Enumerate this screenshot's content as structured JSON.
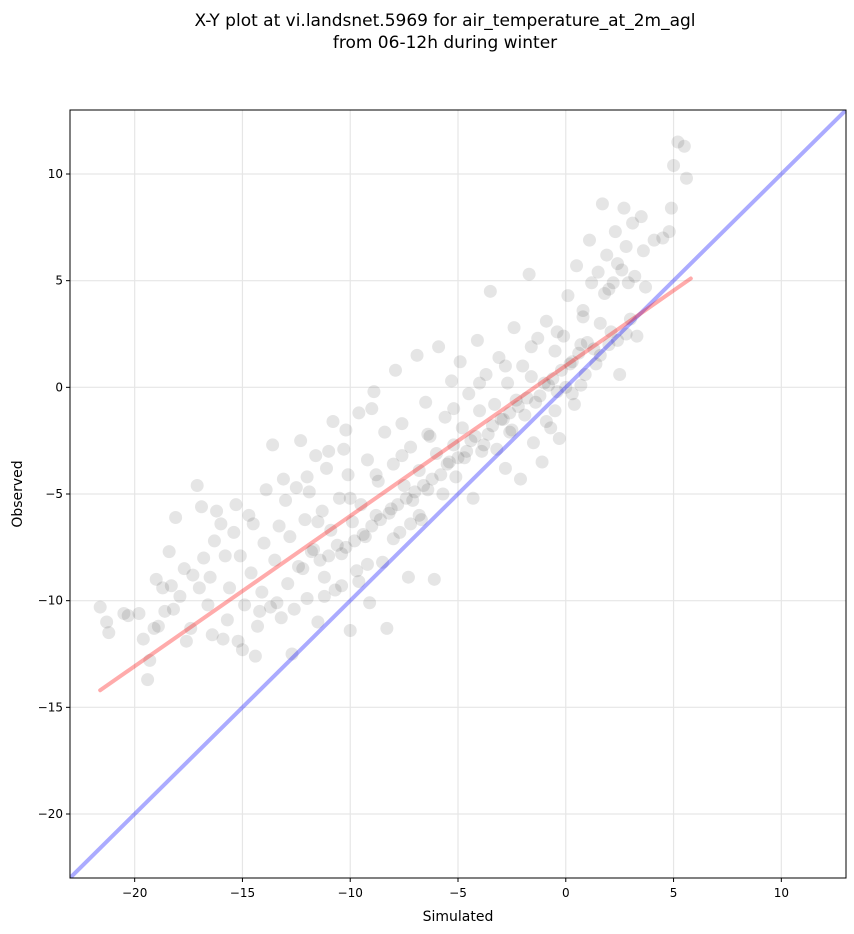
{
  "chart_data": {
    "type": "scatter",
    "title_lines": [
      "X-Y plot at vi.landsnet.5969 for air_temperature_at_2m_agl",
      "from 06-12h during winter"
    ],
    "xlabel": "Simulated",
    "ylabel": "Observed",
    "xlim": [
      -23,
      13
    ],
    "ylim": [
      -23,
      13
    ],
    "xticks": [
      -20,
      -15,
      -10,
      -5,
      0,
      5,
      10
    ],
    "yticks": [
      -20,
      -15,
      -10,
      -5,
      0,
      5,
      10
    ],
    "tick_labels_x": [
      "−20",
      "−15",
      "−10",
      "−5",
      "0",
      "5",
      "10"
    ],
    "tick_labels_y": [
      "−20",
      "−15",
      "−10",
      "−5",
      "0",
      "5",
      "10"
    ],
    "grid": true,
    "point_color": "#000000",
    "point_opacity": 0.1,
    "regression_line": {
      "x": [
        -21.6,
        5.8
      ],
      "y": [
        -14.2,
        5.1
      ],
      "color": "#ff0000"
    },
    "identity_line": {
      "x": [
        -23,
        13
      ],
      "y": [
        -23,
        13
      ],
      "color": "#0000ff"
    },
    "points": [
      [
        -21.6,
        -10.3
      ],
      [
        -21.3,
        -11.0
      ],
      [
        -21.2,
        -11.5
      ],
      [
        -20.5,
        -10.6
      ],
      [
        -20.3,
        -10.7
      ],
      [
        -19.8,
        -10.6
      ],
      [
        -19.6,
        -11.8
      ],
      [
        -19.3,
        -12.8
      ],
      [
        -19.4,
        -13.7
      ],
      [
        -19.0,
        -9.0
      ],
      [
        -18.9,
        -11.2
      ],
      [
        -18.7,
        -9.4
      ],
      [
        -18.6,
        -10.5
      ],
      [
        -18.4,
        -7.7
      ],
      [
        -18.3,
        -9.3
      ],
      [
        -18.1,
        -6.1
      ],
      [
        -17.9,
        -9.8
      ],
      [
        -17.7,
        -8.5
      ],
      [
        -17.6,
        -11.9
      ],
      [
        -17.4,
        -11.3
      ],
      [
        -17.3,
        -8.8
      ],
      [
        -17.1,
        -4.6
      ],
      [
        -16.9,
        -5.6
      ],
      [
        -16.8,
        -8.0
      ],
      [
        -16.6,
        -10.2
      ],
      [
        -16.5,
        -8.9
      ],
      [
        -16.3,
        -7.2
      ],
      [
        -16.2,
        -5.8
      ],
      [
        -16.0,
        -6.4
      ],
      [
        -15.9,
        -11.8
      ],
      [
        -15.7,
        -10.9
      ],
      [
        -15.6,
        -9.4
      ],
      [
        -15.4,
        -6.8
      ],
      [
        -15.3,
        -5.5
      ],
      [
        -15.1,
        -7.9
      ],
      [
        -15.0,
        -12.3
      ],
      [
        -14.9,
        -10.2
      ],
      [
        -14.7,
        -6.0
      ],
      [
        -14.6,
        -8.7
      ],
      [
        -14.4,
        -12.6
      ],
      [
        -14.3,
        -11.2
      ],
      [
        -14.1,
        -9.6
      ],
      [
        -14.0,
        -7.3
      ],
      [
        -13.9,
        -4.8
      ],
      [
        -13.7,
        -10.3
      ],
      [
        -13.6,
        -2.7
      ],
      [
        -13.5,
        -8.1
      ],
      [
        -13.3,
        -6.5
      ],
      [
        -13.2,
        -10.8
      ],
      [
        -13.1,
        -4.3
      ],
      [
        -12.9,
        -9.2
      ],
      [
        -12.8,
        -7.0
      ],
      [
        -12.7,
        -12.5
      ],
      [
        -12.5,
        -4.7
      ],
      [
        -12.4,
        -8.4
      ],
      [
        -12.3,
        -2.5
      ],
      [
        -12.1,
        -6.2
      ],
      [
        -12.0,
        -9.9
      ],
      [
        -11.9,
        -4.9
      ],
      [
        -11.7,
        -7.6
      ],
      [
        -11.6,
        -3.2
      ],
      [
        -11.5,
        -11.0
      ],
      [
        -11.3,
        -5.8
      ],
      [
        -11.2,
        -8.9
      ],
      [
        -11.1,
        -3.8
      ],
      [
        -10.9,
        -6.7
      ],
      [
        -10.8,
        -1.6
      ],
      [
        -10.7,
        -9.5
      ],
      [
        -10.5,
        -5.2
      ],
      [
        -10.4,
        -7.8
      ],
      [
        -10.3,
        -2.9
      ],
      [
        -10.1,
        -4.1
      ],
      [
        -10.0,
        -11.4
      ],
      [
        -9.9,
        -6.3
      ],
      [
        -9.7,
        -8.6
      ],
      [
        -9.6,
        -1.2
      ],
      [
        -9.5,
        -5.5
      ],
      [
        -9.3,
        -7.0
      ],
      [
        -9.2,
        -3.4
      ],
      [
        -9.1,
        -10.1
      ],
      [
        -8.9,
        -0.2
      ],
      [
        -8.8,
        -6.0
      ],
      [
        -8.7,
        -4.4
      ],
      [
        -8.5,
        -8.2
      ],
      [
        -8.4,
        -2.1
      ],
      [
        -8.3,
        -11.3
      ],
      [
        -8.1,
        -5.7
      ],
      [
        -8.0,
        -3.6
      ],
      [
        -7.9,
        0.8
      ],
      [
        -7.7,
        -6.8
      ],
      [
        -7.6,
        -1.7
      ],
      [
        -7.5,
        -4.6
      ],
      [
        -7.3,
        -8.9
      ],
      [
        -7.2,
        -2.8
      ],
      [
        -7.1,
        -5.3
      ],
      [
        -6.9,
        1.5
      ],
      [
        -6.8,
        -3.9
      ],
      [
        -6.7,
        -6.2
      ],
      [
        -6.5,
        -0.7
      ],
      [
        -6.4,
        -4.8
      ],
      [
        -6.3,
        -2.3
      ],
      [
        -6.1,
        -9.0
      ],
      [
        -6.0,
        -3.1
      ],
      [
        -5.9,
        1.9
      ],
      [
        -5.7,
        -5.0
      ],
      [
        -5.6,
        -1.4
      ],
      [
        -5.5,
        -3.6
      ],
      [
        -5.3,
        0.3
      ],
      [
        -5.2,
        -2.7
      ],
      [
        -5.1,
        -4.2
      ],
      [
        -4.9,
        1.2
      ],
      [
        -4.8,
        -1.9
      ],
      [
        -4.7,
        -3.3
      ],
      [
        -4.5,
        -0.3
      ],
      [
        -4.4,
        -2.5
      ],
      [
        -4.3,
        -5.2
      ],
      [
        -4.1,
        2.2
      ],
      [
        -4.0,
        -1.1
      ],
      [
        -3.9,
        -3.0
      ],
      [
        -3.7,
        0.6
      ],
      [
        -3.6,
        -2.2
      ],
      [
        -3.5,
        4.5
      ],
      [
        -3.3,
        -0.8
      ],
      [
        -3.2,
        -2.9
      ],
      [
        -3.1,
        1.4
      ],
      [
        -2.9,
        -1.5
      ],
      [
        -2.8,
        -3.8
      ],
      [
        -2.7,
        0.2
      ],
      [
        -2.5,
        -2.0
      ],
      [
        -2.4,
        2.8
      ],
      [
        -2.3,
        -0.6
      ],
      [
        -2.1,
        -4.3
      ],
      [
        -2.0,
        1.0
      ],
      [
        -1.9,
        -1.3
      ],
      [
        -1.7,
        5.3
      ],
      [
        -1.6,
        0.5
      ],
      [
        -1.5,
        -2.6
      ],
      [
        -1.3,
        2.3
      ],
      [
        -1.2,
        -0.4
      ],
      [
        -1.1,
        -3.5
      ],
      [
        -0.9,
        3.1
      ],
      [
        -0.8,
        0.1
      ],
      [
        -0.7,
        -1.9
      ],
      [
        -0.5,
        1.7
      ],
      [
        -0.4,
        -0.2
      ],
      [
        -0.3,
        -2.4
      ],
      [
        -0.1,
        2.4
      ],
      [
        0.0,
        0.0
      ],
      [
        0.1,
        4.3
      ],
      [
        0.3,
        1.2
      ],
      [
        0.4,
        -0.8
      ],
      [
        0.5,
        5.7
      ],
      [
        0.7,
        2.0
      ],
      [
        0.8,
        3.6
      ],
      [
        0.9,
        0.6
      ],
      [
        1.1,
        6.9
      ],
      [
        1.2,
        4.9
      ],
      [
        1.3,
        1.8
      ],
      [
        1.5,
        5.4
      ],
      [
        1.6,
        3.0
      ],
      [
        1.7,
        8.6
      ],
      [
        1.9,
        6.2
      ],
      [
        2.0,
        4.6
      ],
      [
        2.1,
        2.6
      ],
      [
        2.3,
        7.3
      ],
      [
        2.4,
        5.8
      ],
      [
        2.5,
        0.6
      ],
      [
        2.7,
        8.4
      ],
      [
        2.8,
        6.6
      ],
      [
        2.9,
        4.9
      ],
      [
        3.1,
        7.7
      ],
      [
        3.2,
        5.2
      ],
      [
        3.3,
        2.4
      ],
      [
        3.5,
        8.0
      ],
      [
        3.6,
        6.4
      ],
      [
        3.7,
        4.7
      ],
      [
        4.1,
        6.9
      ],
      [
        4.5,
        7.0
      ],
      [
        4.8,
        7.3
      ],
      [
        4.9,
        8.4
      ],
      [
        5.0,
        10.4
      ],
      [
        5.2,
        11.5
      ],
      [
        5.5,
        11.3
      ],
      [
        5.6,
        9.8
      ],
      [
        -2.6,
        -1.2
      ],
      [
        -2.2,
        -0.9
      ],
      [
        -1.8,
        -0.5
      ],
      [
        -1.4,
        -0.7
      ],
      [
        -1.0,
        0.2
      ],
      [
        -0.6,
        0.4
      ],
      [
        -0.2,
        0.8
      ],
      [
        0.2,
        1.1
      ],
      [
        0.6,
        1.6
      ],
      [
        1.0,
        2.1
      ],
      [
        -3.4,
        -1.8
      ],
      [
        -3.0,
        -1.5
      ],
      [
        -2.6,
        -2.1
      ],
      [
        -4.2,
        -2.3
      ],
      [
        -3.8,
        -2.7
      ],
      [
        -4.6,
        -3.0
      ],
      [
        -5.0,
        -3.3
      ],
      [
        -5.4,
        -3.5
      ],
      [
        -5.8,
        -4.1
      ],
      [
        -6.2,
        -4.3
      ],
      [
        -6.6,
        -4.6
      ],
      [
        -7.0,
        -4.9
      ],
      [
        -7.4,
        -5.2
      ],
      [
        -7.8,
        -5.5
      ],
      [
        -8.2,
        -5.9
      ],
      [
        -8.6,
        -6.2
      ],
      [
        -9.0,
        -6.5
      ],
      [
        -9.4,
        -6.9
      ],
      [
        -9.8,
        -7.2
      ],
      [
        -10.2,
        -7.5
      ],
      [
        -10.6,
        -7.4
      ],
      [
        -11.0,
        -7.9
      ],
      [
        -11.4,
        -8.1
      ],
      [
        -11.8,
        -7.7
      ],
      [
        -12.2,
        -8.5
      ],
      [
        -6.8,
        -6.0
      ],
      [
        -7.2,
        -6.4
      ],
      [
        -8.0,
        -7.1
      ],
      [
        -9.2,
        -8.3
      ],
      [
        -9.6,
        -9.1
      ],
      [
        -10.4,
        -9.3
      ],
      [
        -11.2,
        -9.8
      ],
      [
        -12.6,
        -10.4
      ],
      [
        -13.4,
        -10.1
      ],
      [
        -14.2,
        -10.5
      ],
      [
        -15.2,
        -11.9
      ],
      [
        -16.4,
        -11.6
      ],
      [
        -11.5,
        -6.3
      ],
      [
        -10.0,
        -5.2
      ],
      [
        -8.8,
        -4.1
      ],
      [
        -7.6,
        -3.2
      ],
      [
        -6.4,
        -2.2
      ],
      [
        -5.2,
        -1.0
      ],
      [
        -4.0,
        0.2
      ],
      [
        -2.8,
        1.0
      ],
      [
        -1.6,
        1.9
      ],
      [
        -0.4,
        2.6
      ],
      [
        0.8,
        3.3
      ],
      [
        1.8,
        4.4
      ],
      [
        2.2,
        4.9
      ],
      [
        2.6,
        5.5
      ],
      [
        -0.9,
        -1.6
      ],
      [
        -0.5,
        -1.1
      ],
      [
        0.3,
        -0.3
      ],
      [
        0.7,
        0.1
      ],
      [
        1.4,
        1.1
      ],
      [
        1.6,
        1.5
      ],
      [
        2.0,
        2.0
      ],
      [
        2.4,
        2.2
      ],
      [
        2.8,
        2.5
      ],
      [
        3.0,
        3.2
      ],
      [
        -13.0,
        -5.3
      ],
      [
        -12.0,
        -4.2
      ],
      [
        -11.0,
        -3.0
      ],
      [
        -10.2,
        -2.0
      ],
      [
        -9.0,
        -1.0
      ],
      [
        -14.5,
        -6.4
      ],
      [
        -15.8,
        -7.9
      ],
      [
        -17.0,
        -9.4
      ],
      [
        -18.2,
        -10.4
      ],
      [
        -19.1,
        -11.3
      ]
    ]
  }
}
